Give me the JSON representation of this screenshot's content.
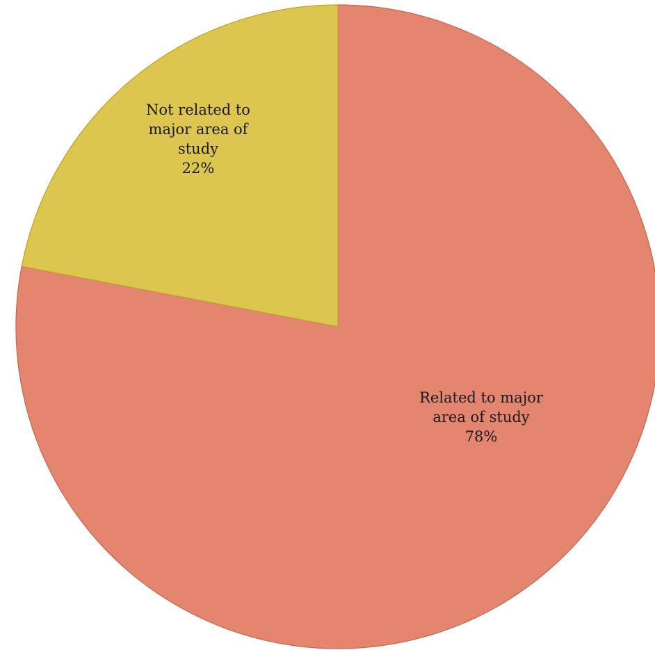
{
  "chart_data": {
    "type": "pie",
    "start_angle_deg": 0,
    "direction": "clockwise",
    "slices": [
      {
        "label_lines": [
          "Related to major",
          "area of study"
        ],
        "percent_label": "78%",
        "value": 78,
        "color": "#E4856F",
        "stroke": "#C9624A"
      },
      {
        "label_lines": [
          "Not related to",
          "major area of",
          "study"
        ],
        "percent_label": "22%",
        "value": 22,
        "color": "#DCC650",
        "stroke": "#B9A12E"
      }
    ],
    "legend": "none",
    "title": ""
  }
}
